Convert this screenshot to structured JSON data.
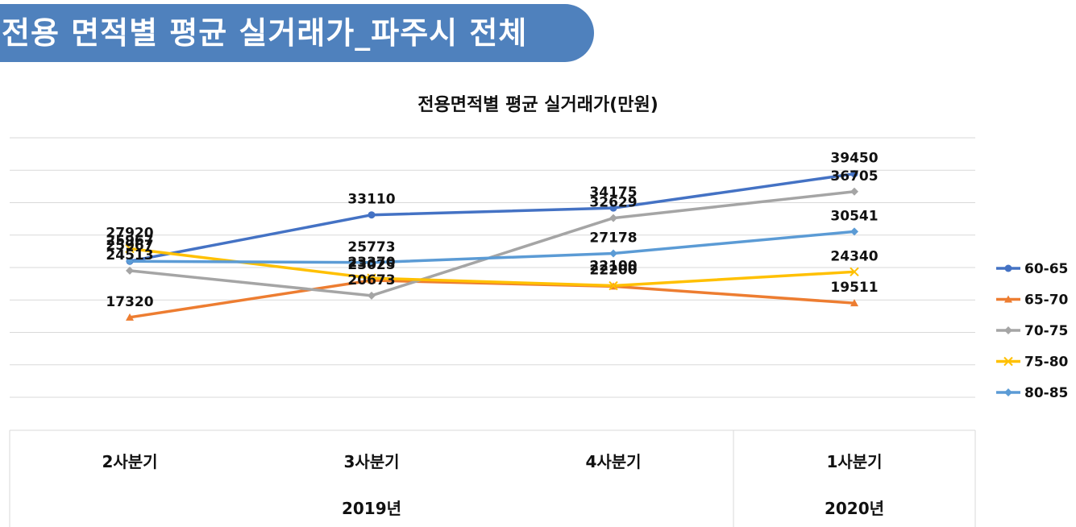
{
  "banner": {
    "title": "전용 면적별 평균 실거래가_파주시 전체"
  },
  "chart_data": {
    "type": "line",
    "title": "전용면적별 평균 실거래가(만원)",
    "categories": [
      "2사분기",
      "3사분기",
      "4사분기",
      "1사분기"
    ],
    "year_groups": [
      {
        "label": "2019년",
        "span": [
          0,
          2
        ]
      },
      {
        "label": "2020년",
        "span": [
          3,
          3
        ]
      }
    ],
    "ylim": [
      5000,
      45000
    ],
    "grid": true,
    "legend": "right",
    "series": [
      {
        "name": "60-65",
        "color": "#4472c4",
        "marker": "circle",
        "values": [
          25967,
          33110,
          34175,
          39450
        ]
      },
      {
        "name": "65-70",
        "color": "#ed7d31",
        "marker": "triangle",
        "values": [
          17320,
          23025,
          22100,
          19511
        ]
      },
      {
        "name": "70-75",
        "color": "#a5a5a5",
        "marker": "diamond",
        "values": [
          24513,
          20673,
          32629,
          36705
        ]
      },
      {
        "name": "75-80",
        "color": "#ffc000",
        "marker": "x",
        "values": [
          27920,
          23370,
          22200,
          24340
        ]
      },
      {
        "name": "80-85",
        "color": "#5b9bd5",
        "marker": "diamond",
        "values": [
          25967,
          25773,
          27178,
          30541
        ]
      }
    ],
    "data_labels": [
      {
        "text": "27920",
        "series": 3,
        "point": 0
      },
      {
        "text": "25967",
        "series": 0,
        "point": 0
      },
      {
        "text": "25967",
        "series": 4,
        "point": 0
      },
      {
        "text": "24513",
        "series": 2,
        "point": 0
      },
      {
        "text": "17320",
        "series": 1,
        "point": 0
      },
      {
        "text": "33110",
        "series": 0,
        "point": 1
      },
      {
        "text": "25773",
        "series": 4,
        "point": 1
      },
      {
        "text": "23370",
        "series": 3,
        "point": 1
      },
      {
        "text": "23025",
        "series": 1,
        "point": 1
      },
      {
        "text": "20673",
        "series": 2,
        "point": 1
      },
      {
        "text": "34175",
        "series": 0,
        "point": 2
      },
      {
        "text": "32629",
        "series": 2,
        "point": 2
      },
      {
        "text": "27178",
        "series": 4,
        "point": 2
      },
      {
        "text": "22200",
        "series": 3,
        "point": 2
      },
      {
        "text": "22100",
        "series": 1,
        "point": 2
      },
      {
        "text": "39450",
        "series": 0,
        "point": 3
      },
      {
        "text": "36705",
        "series": 2,
        "point": 3
      },
      {
        "text": "30541",
        "series": 4,
        "point": 3
      },
      {
        "text": "24340",
        "series": 3,
        "point": 3
      },
      {
        "text": "19511",
        "series": 1,
        "point": 3
      }
    ]
  }
}
